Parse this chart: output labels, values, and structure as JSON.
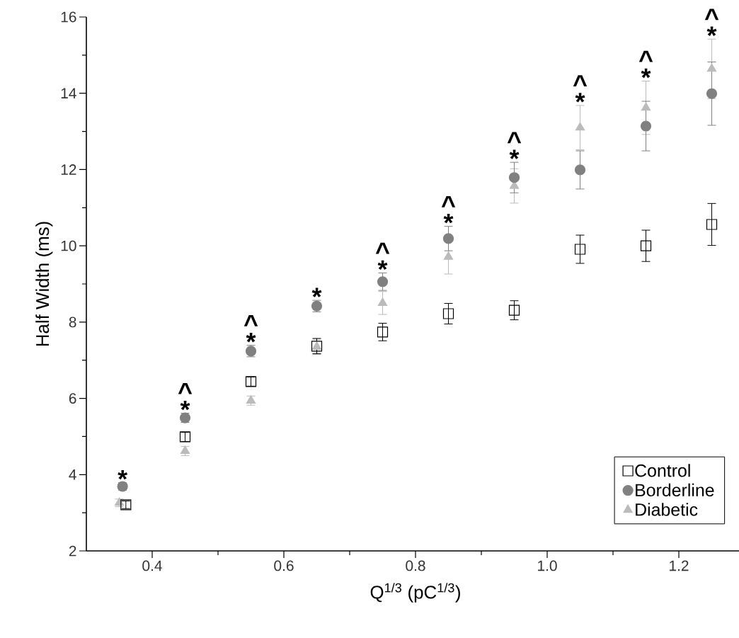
{
  "chart_data": {
    "type": "scatter",
    "xlabel": "Q$^{1/3}$ (pC$^{1/3}$)",
    "ylabel": "Half Width (ms)",
    "xlim": [
      0.3,
      1.3
    ],
    "ylim": [
      2,
      16
    ],
    "xticks": [
      0.4,
      0.6,
      0.8,
      {
        "value": 1.0,
        "label": "1.0"
      },
      1.2
    ],
    "yticks": [
      2,
      4,
      6,
      8,
      10,
      12,
      14,
      16
    ],
    "grid": false,
    "legend": "bottom right",
    "series": [
      {
        "name": "Control",
        "color": "#000000",
        "marker": "square",
        "x": [
          0.36,
          0.45,
          0.55,
          0.65,
          0.75,
          0.85,
          0.95,
          1.05,
          1.15,
          1.25
        ],
        "values": [
          3.21,
          4.99,
          6.44,
          7.37,
          7.74,
          8.22,
          8.31,
          9.91,
          10.0,
          10.56
        ],
        "errors": [
          0.1,
          0.12,
          0.12,
          0.2,
          0.23,
          0.27,
          0.25,
          0.37,
          0.41,
          0.55
        ]
      },
      {
        "name": "Borderline",
        "color": "#808080",
        "marker": "circle",
        "x": [
          0.355,
          0.45,
          0.55,
          0.65,
          0.75,
          0.85,
          0.95,
          1.05,
          1.15,
          1.25
        ],
        "values": [
          3.69,
          5.49,
          7.24,
          8.42,
          9.06,
          10.19,
          11.79,
          11.99,
          13.14,
          13.99
        ],
        "errors": [
          0.1,
          0.12,
          0.15,
          0.15,
          0.23,
          0.32,
          0.4,
          0.5,
          0.65,
          0.83
        ]
      },
      {
        "name": "Diabetic",
        "color": "#bbbbbb",
        "marker": "triangle",
        "x": [
          0.35,
          0.45,
          0.55,
          0.65,
          0.75,
          0.85,
          0.95,
          1.05,
          1.15,
          1.25
        ],
        "values": [
          3.26,
          4.62,
          5.94,
          7.35,
          8.5,
          9.71,
          11.57,
          13.1,
          13.62,
          14.64
        ],
        "errors": [
          0.1,
          0.12,
          0.12,
          0.2,
          0.3,
          0.45,
          0.45,
          0.58,
          0.7,
          0.78
        ]
      }
    ],
    "annotations": [
      {
        "text": "*",
        "x": 0.355,
        "y": 3.69
      },
      {
        "text": "*",
        "x": 0.45,
        "y": 5.49
      },
      {
        "text": "^",
        "x": 0.45,
        "y": 5.49
      },
      {
        "text": "*",
        "x": 0.55,
        "y": 7.24
      },
      {
        "text": "^",
        "x": 0.55,
        "y": 7.24
      },
      {
        "text": "*",
        "x": 0.65,
        "y": 8.42
      },
      {
        "text": "*",
        "x": 0.75,
        "y": 9.06
      },
      {
        "text": "^",
        "x": 0.75,
        "y": 9.06
      },
      {
        "text": "*",
        "x": 0.85,
        "y": 10.19
      },
      {
        "text": "^",
        "x": 0.85,
        "y": 10.19
      },
      {
        "text": "*",
        "x": 0.95,
        "y": 11.79
      },
      {
        "text": "^",
        "x": 0.95,
        "y": 11.79
      },
      {
        "text": "*",
        "x": 1.05,
        "y": 13.1
      },
      {
        "text": "^",
        "x": 1.05,
        "y": 13.1
      },
      {
        "text": "*",
        "x": 1.15,
        "y": 13.62
      },
      {
        "text": "^",
        "x": 1.15,
        "y": 13.62
      },
      {
        "text": "*",
        "x": 1.25,
        "y": 14.64
      },
      {
        "text": "^",
        "x": 1.25,
        "y": 14.64
      }
    ]
  }
}
